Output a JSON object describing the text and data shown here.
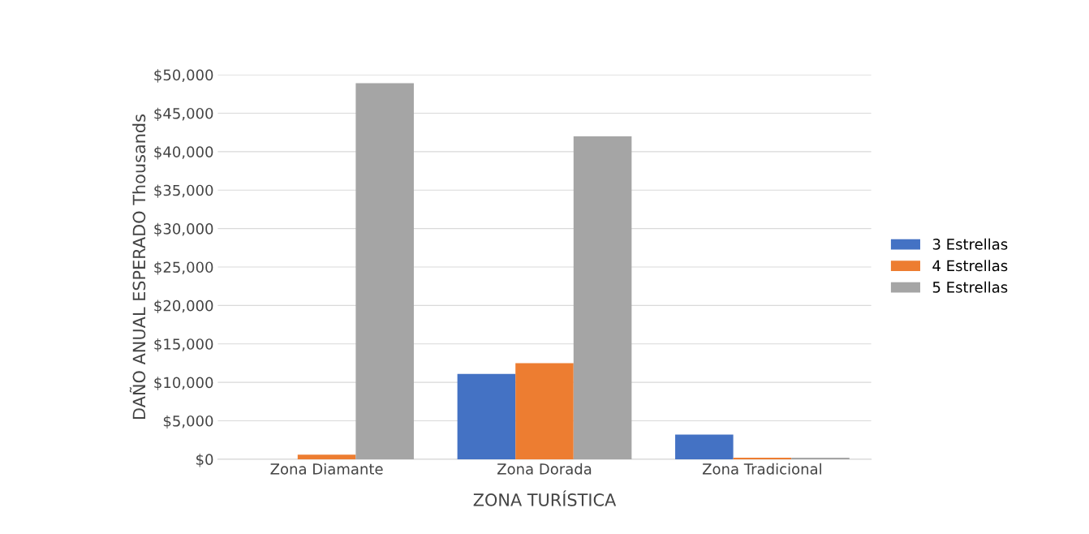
{
  "chart_data": {
    "type": "bar",
    "xlabel": "ZONA TURÍSTICA",
    "ylabel": "DAÑO ANUAL ESPERADO Thousands",
    "categories": [
      "Zona Diamante",
      "Zona Dorada",
      "Zona Tradicional"
    ],
    "series": [
      {
        "name": "3 Estrellas",
        "color": "#4472c4",
        "values": [
          0,
          11100,
          3200
        ]
      },
      {
        "name": "4 Estrellas",
        "color": "#ed7d31",
        "values": [
          600,
          12500,
          200
        ]
      },
      {
        "name": "5 Estrellas",
        "color": "#a5a5a5",
        "values": [
          48900,
          42000,
          200
        ]
      }
    ],
    "ylim": [
      0,
      50000
    ],
    "yticks": [
      {
        "value": 0,
        "label": "$0"
      },
      {
        "value": 5000,
        "label": "$5,000"
      },
      {
        "value": 10000,
        "label": "$10,000"
      },
      {
        "value": 15000,
        "label": "$15,000"
      },
      {
        "value": 20000,
        "label": "$20,000"
      },
      {
        "value": 25000,
        "label": "$25,000"
      },
      {
        "value": 30000,
        "label": "$30,000"
      },
      {
        "value": 35000,
        "label": "$35,000"
      },
      {
        "value": 40000,
        "label": "$40,000"
      },
      {
        "value": 45000,
        "label": "$45,000"
      },
      {
        "value": 50000,
        "label": "$50,000"
      }
    ],
    "grid": "y",
    "legend": "right"
  }
}
